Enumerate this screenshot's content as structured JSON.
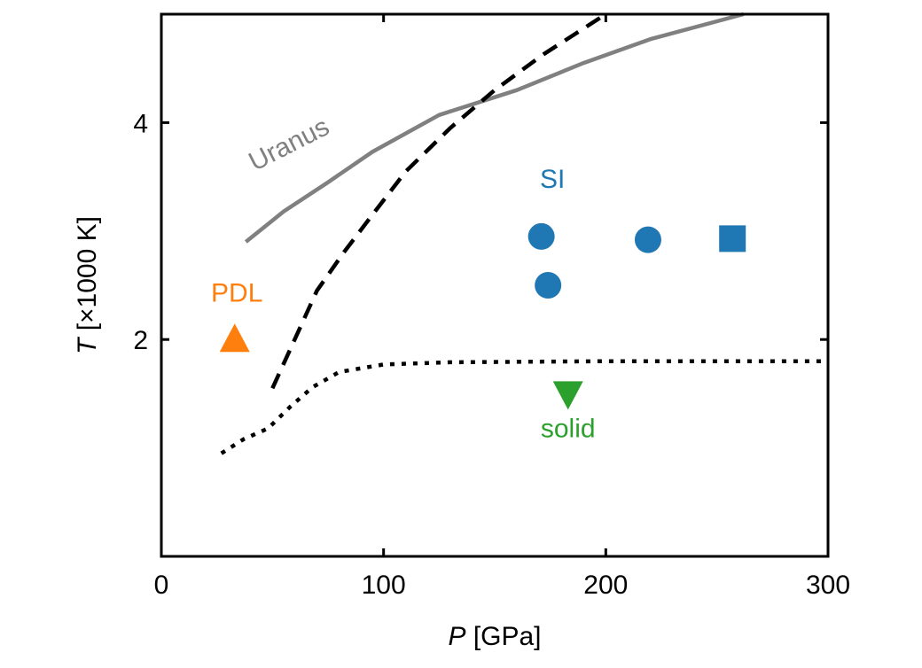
{
  "chart_data": {
    "type": "scatter",
    "xlabel_var": "P",
    "xlabel_unit": " [GPa]",
    "ylabel_var": "T",
    "ylabel_unit": " [×1000 K]",
    "xlim": [
      0,
      300
    ],
    "ylim": [
      0,
      5
    ],
    "xticks": [
      0,
      100,
      200,
      300
    ],
    "yticks": [
      2,
      4
    ],
    "xtick_labels": [
      "0",
      "100",
      "200",
      "300"
    ],
    "ytick_labels": [
      "2",
      "4"
    ],
    "grid": false,
    "colors": {
      "uranus": "#808080",
      "si": "#1f77b4",
      "pdl": "#ff7f0e",
      "solid": "#2ca02c",
      "boundary": "#000000"
    },
    "lines": [
      {
        "id": "uranus",
        "style": "solid",
        "points": [
          [
            38,
            2.9
          ],
          [
            55,
            3.18
          ],
          [
            75,
            3.45
          ],
          [
            95,
            3.73
          ],
          [
            125,
            4.07
          ],
          [
            160,
            4.3
          ],
          [
            190,
            4.55
          ],
          [
            220,
            4.77
          ],
          [
            262,
            5.0
          ]
        ]
      },
      {
        "id": "melting",
        "style": "dashed",
        "points": [
          [
            50,
            1.55
          ],
          [
            60,
            2.0
          ],
          [
            70,
            2.45
          ],
          [
            82,
            2.8
          ],
          [
            95,
            3.15
          ],
          [
            110,
            3.55
          ],
          [
            130,
            3.95
          ],
          [
            150,
            4.3
          ],
          [
            172,
            4.63
          ],
          [
            200,
            5.0
          ]
        ]
      },
      {
        "id": "superionic-boundary",
        "style": "dotted",
        "points": [
          [
            27,
            0.95
          ],
          [
            37,
            1.08
          ],
          [
            48,
            1.18
          ],
          [
            58,
            1.38
          ],
          [
            68,
            1.56
          ],
          [
            80,
            1.7
          ],
          [
            100,
            1.77
          ],
          [
            130,
            1.79
          ],
          [
            200,
            1.8
          ],
          [
            300,
            1.8
          ]
        ]
      }
    ],
    "series": [
      {
        "group": "SI",
        "marker": "circle",
        "points": [
          [
            171,
            2.95
          ],
          [
            174,
            2.5
          ],
          [
            219,
            2.92
          ]
        ]
      },
      {
        "group": "SI",
        "marker": "square",
        "points": [
          [
            257,
            2.93
          ]
        ]
      },
      {
        "group": "PDL",
        "marker": "triangle-up",
        "points": [
          [
            33,
            2.0
          ]
        ]
      },
      {
        "group": "solid",
        "marker": "triangle-down",
        "points": [
          [
            183,
            1.5
          ]
        ]
      }
    ],
    "annotations": [
      {
        "text": "Uranus",
        "x": 42,
        "y": 3.55,
        "rotation": -27,
        "color_key": "uranus"
      },
      {
        "text": "SI",
        "x": 176,
        "y": 3.4,
        "rotation": 0,
        "color_key": "si"
      },
      {
        "text": "PDL",
        "x": 34,
        "y": 2.35,
        "rotation": 0,
        "color_key": "pdl"
      },
      {
        "text": "solid",
        "x": 183,
        "y": 1.1,
        "rotation": 0,
        "color_key": "solid"
      }
    ]
  }
}
